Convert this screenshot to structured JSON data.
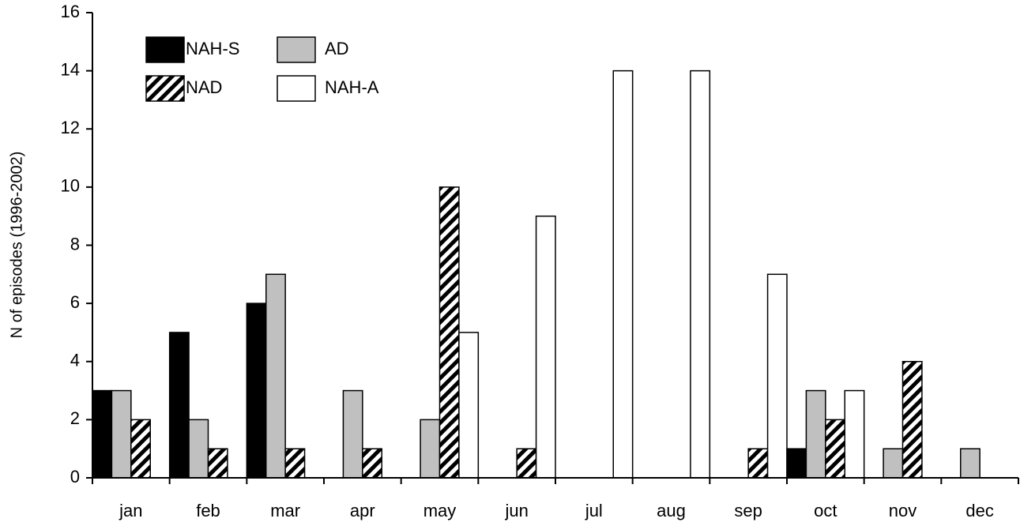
{
  "chart_data": {
    "type": "bar",
    "y_label": "N of episodes (1996-2002)",
    "categories": [
      "jan",
      "feb",
      "mar",
      "apr",
      "may",
      "jun",
      "jul",
      "aug",
      "sep",
      "oct",
      "nov",
      "dec"
    ],
    "series": [
      {
        "name": "NAH-S",
        "color": "#000000",
        "values": [
          3,
          5,
          6,
          0,
          0,
          0,
          0,
          0,
          0,
          1,
          0,
          0
        ]
      },
      {
        "name": "AD",
        "color": "#c0c0c0",
        "values": [
          3,
          2,
          7,
          3,
          2,
          0,
          0,
          0,
          0,
          3,
          1,
          1
        ]
      },
      {
        "name": "NAD",
        "color": "#000000",
        "hatch": true,
        "values": [
          2,
          1,
          1,
          1,
          10,
          1,
          0,
          0,
          1,
          2,
          4,
          0
        ]
      },
      {
        "name": "NAH-A",
        "color": "#ffffff",
        "values": [
          0,
          0,
          0,
          0,
          5,
          9,
          14,
          14,
          7,
          3,
          0,
          0
        ]
      }
    ],
    "ylim": [
      0,
      16
    ],
    "yticks": [
      0,
      2,
      4,
      6,
      8,
      10,
      12,
      14,
      16
    ],
    "legend": "upper left"
  }
}
